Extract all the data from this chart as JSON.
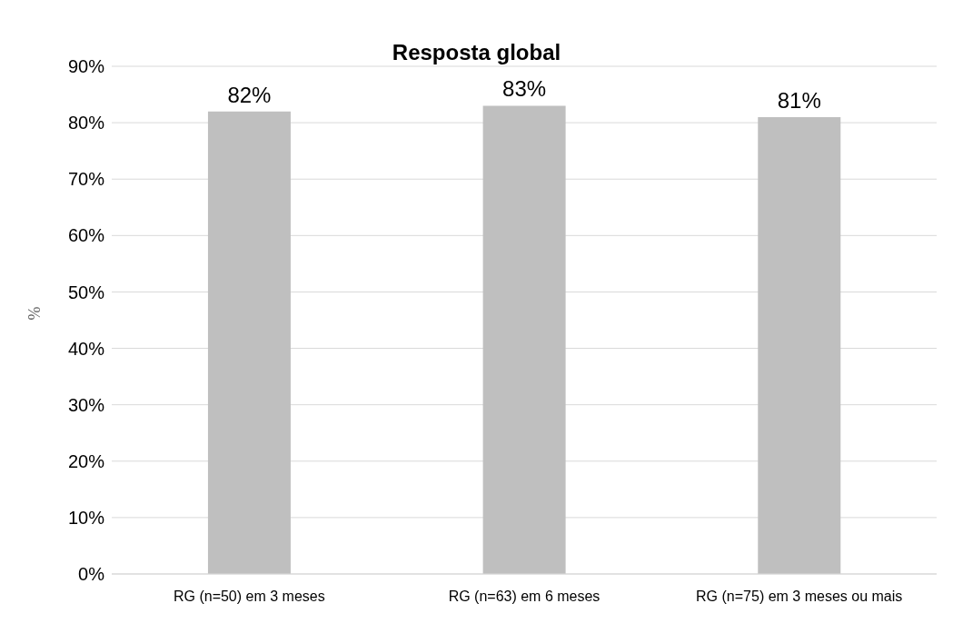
{
  "chart_data": {
    "type": "bar",
    "title": "Resposta global",
    "ylabel": "%",
    "categories": [
      "RG (n=50) em 3 meses",
      "RG (n=63) em 6 meses",
      "RG (n=75) em 3 meses ou mais"
    ],
    "values": [
      82,
      83,
      81
    ],
    "value_labels": [
      "82%",
      "83%",
      "81%"
    ],
    "color": "#bfbfbf",
    "ylim": [
      0,
      90
    ],
    "yticks": [
      {
        "value": 0,
        "label": "0%"
      },
      {
        "value": 10,
        "label": "10%"
      },
      {
        "value": 20,
        "label": "20%"
      },
      {
        "value": 30,
        "label": "30%"
      },
      {
        "value": 40,
        "label": "40%"
      },
      {
        "value": 50,
        "label": "50%"
      },
      {
        "value": 60,
        "label": "60%"
      },
      {
        "value": 70,
        "label": "70%"
      },
      {
        "value": 80,
        "label": "80%"
      },
      {
        "value": 90,
        "label": "90%"
      }
    ],
    "grid": "y"
  }
}
